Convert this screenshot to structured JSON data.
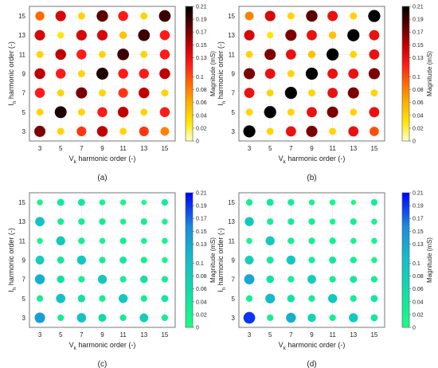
{
  "colors": {
    "warm_stops": [
      "#ffffcc",
      "#ffe600",
      "#ffb000",
      "#ff6a00",
      "#ff1a1a",
      "#c00000",
      "#5a0000",
      "#000000"
    ],
    "cool_stops": [
      "#1aff7f",
      "#12dfa6",
      "#14bfc9",
      "#1a8cde",
      "#0000ff"
    ],
    "grid": "#d9d9d9",
    "axis": "#555555"
  },
  "chart_data": [
    {
      "type": "scatter",
      "panel_label": "(a)",
      "colormap": "warm",
      "xlabel": "V",
      "xlabel_sub": "k",
      "xlabel_rest": " harmonic order (-)",
      "ylabel": "I",
      "ylabel_sub": "h",
      "ylabel_rest": " harmonic order (-)",
      "x_ticks": [
        "3",
        "5",
        "7",
        "9",
        "11",
        "13",
        "15"
      ],
      "y_ticks": [
        "3",
        "5",
        "7",
        "9",
        "11",
        "13",
        "15"
      ],
      "colorbar_label": "Magnitude (mS)",
      "colorbar_range": [
        0,
        0.21
      ],
      "colorbar_ticks": [
        "0",
        "0.02",
        "0.04",
        "0.06",
        "0.08",
        "0.1",
        "0.13",
        "0.15",
        "0.17",
        "0.19",
        "0.21"
      ],
      "grid": true,
      "points": [
        {
          "x": 3,
          "y": 15,
          "v": 0.09
        },
        {
          "x": 5,
          "y": 15,
          "v": 0.14
        },
        {
          "x": 7,
          "y": 15,
          "v": 0.04
        },
        {
          "x": 9,
          "y": 15,
          "v": 0.18
        },
        {
          "x": 11,
          "y": 15,
          "v": 0.12
        },
        {
          "x": 13,
          "y": 15,
          "v": 0.04
        },
        {
          "x": 15,
          "y": 15,
          "v": 0.19
        },
        {
          "x": 3,
          "y": 13,
          "v": 0.14
        },
        {
          "x": 5,
          "y": 13,
          "v": 0.03
        },
        {
          "x": 7,
          "y": 13,
          "v": 0.14
        },
        {
          "x": 9,
          "y": 13,
          "v": 0.14
        },
        {
          "x": 11,
          "y": 13,
          "v": 0.05
        },
        {
          "x": 13,
          "y": 13,
          "v": 0.19
        },
        {
          "x": 15,
          "y": 13,
          "v": 0.12
        },
        {
          "x": 3,
          "y": 11,
          "v": 0.04
        },
        {
          "x": 5,
          "y": 11,
          "v": 0.15
        },
        {
          "x": 7,
          "y": 11,
          "v": 0.12
        },
        {
          "x": 9,
          "y": 11,
          "v": 0.04
        },
        {
          "x": 11,
          "y": 11,
          "v": 0.19
        },
        {
          "x": 13,
          "y": 11,
          "v": 0.04
        },
        {
          "x": 15,
          "y": 11,
          "v": 0.12
        },
        {
          "x": 3,
          "y": 9,
          "v": 0.15
        },
        {
          "x": 5,
          "y": 9,
          "v": 0.12
        },
        {
          "x": 7,
          "y": 9,
          "v": 0.04
        },
        {
          "x": 9,
          "y": 9,
          "v": 0.2
        },
        {
          "x": 11,
          "y": 9,
          "v": 0.12
        },
        {
          "x": 13,
          "y": 9,
          "v": 0.12
        },
        {
          "x": 15,
          "y": 9,
          "v": 0.15
        },
        {
          "x": 3,
          "y": 7,
          "v": 0.12
        },
        {
          "x": 5,
          "y": 7,
          "v": 0.04
        },
        {
          "x": 7,
          "y": 7,
          "v": 0.17
        },
        {
          "x": 9,
          "y": 7,
          "v": 0.04
        },
        {
          "x": 11,
          "y": 7,
          "v": 0.11
        },
        {
          "x": 13,
          "y": 7,
          "v": 0.15
        },
        {
          "x": 15,
          "y": 7,
          "v": 0.04
        },
        {
          "x": 3,
          "y": 5,
          "v": 0.04
        },
        {
          "x": 5,
          "y": 5,
          "v": 0.2
        },
        {
          "x": 7,
          "y": 5,
          "v": 0.04
        },
        {
          "x": 9,
          "y": 5,
          "v": 0.12
        },
        {
          "x": 11,
          "y": 5,
          "v": 0.15
        },
        {
          "x": 13,
          "y": 5,
          "v": 0.04
        },
        {
          "x": 15,
          "y": 5,
          "v": 0.12
        },
        {
          "x": 3,
          "y": 3,
          "v": 0.17
        },
        {
          "x": 5,
          "y": 3,
          "v": 0.04
        },
        {
          "x": 7,
          "y": 3,
          "v": 0.11
        },
        {
          "x": 9,
          "y": 3,
          "v": 0.15
        },
        {
          "x": 11,
          "y": 3,
          "v": 0.04
        },
        {
          "x": 13,
          "y": 3,
          "v": 0.11
        },
        {
          "x": 15,
          "y": 3,
          "v": 0.08
        }
      ]
    },
    {
      "type": "scatter",
      "panel_label": "(b)",
      "colormap": "warm",
      "xlabel": "V",
      "xlabel_sub": "k",
      "xlabel_rest": " harmonic order (-)",
      "ylabel": "I",
      "ylabel_sub": "h",
      "ylabel_rest": " harmonic order (-)",
      "x_ticks": [
        "3",
        "5",
        "7",
        "9",
        "11",
        "13",
        "15"
      ],
      "y_ticks": [
        "3",
        "5",
        "7",
        "9",
        "11",
        "13",
        "15"
      ],
      "colorbar_label": "Magnitude (mS)",
      "colorbar_range": [
        0,
        0.21
      ],
      "colorbar_ticks": [
        "0",
        "0.02",
        "0.04",
        "0.06",
        "0.08",
        "0.1",
        "0.13",
        "0.15",
        "0.17",
        "0.19",
        "0.21"
      ],
      "grid": true,
      "points": [
        {
          "x": 3,
          "y": 15,
          "v": 0.08
        },
        {
          "x": 5,
          "y": 15,
          "v": 0.14
        },
        {
          "x": 7,
          "y": 15,
          "v": 0.04
        },
        {
          "x": 9,
          "y": 15,
          "v": 0.18
        },
        {
          "x": 11,
          "y": 15,
          "v": 0.13
        },
        {
          "x": 13,
          "y": 15,
          "v": 0.04
        },
        {
          "x": 15,
          "y": 15,
          "v": 0.21
        },
        {
          "x": 3,
          "y": 13,
          "v": 0.14
        },
        {
          "x": 5,
          "y": 13,
          "v": 0.03
        },
        {
          "x": 7,
          "y": 13,
          "v": 0.17
        },
        {
          "x": 9,
          "y": 13,
          "v": 0.13
        },
        {
          "x": 11,
          "y": 13,
          "v": 0.05
        },
        {
          "x": 13,
          "y": 13,
          "v": 0.21
        },
        {
          "x": 15,
          "y": 13,
          "v": 0.13
        },
        {
          "x": 3,
          "y": 11,
          "v": 0.04
        },
        {
          "x": 5,
          "y": 11,
          "v": 0.17
        },
        {
          "x": 7,
          "y": 11,
          "v": 0.13
        },
        {
          "x": 9,
          "y": 11,
          "v": 0.05
        },
        {
          "x": 11,
          "y": 11,
          "v": 0.21
        },
        {
          "x": 13,
          "y": 11,
          "v": 0.04
        },
        {
          "x": 15,
          "y": 11,
          "v": 0.13
        },
        {
          "x": 3,
          "y": 9,
          "v": 0.17
        },
        {
          "x": 5,
          "y": 9,
          "v": 0.13
        },
        {
          "x": 7,
          "y": 9,
          "v": 0.04
        },
        {
          "x": 9,
          "y": 9,
          "v": 0.21
        },
        {
          "x": 11,
          "y": 9,
          "v": 0.13
        },
        {
          "x": 13,
          "y": 9,
          "v": 0.13
        },
        {
          "x": 15,
          "y": 9,
          "v": 0.17
        },
        {
          "x": 3,
          "y": 7,
          "v": 0.13
        },
        {
          "x": 5,
          "y": 7,
          "v": 0.04
        },
        {
          "x": 7,
          "y": 7,
          "v": 0.21
        },
        {
          "x": 9,
          "y": 7,
          "v": 0.04
        },
        {
          "x": 11,
          "y": 7,
          "v": 0.13
        },
        {
          "x": 13,
          "y": 7,
          "v": 0.17
        },
        {
          "x": 15,
          "y": 7,
          "v": 0.04
        },
        {
          "x": 3,
          "y": 5,
          "v": 0.04
        },
        {
          "x": 5,
          "y": 5,
          "v": 0.21
        },
        {
          "x": 7,
          "y": 5,
          "v": 0.04
        },
        {
          "x": 9,
          "y": 5,
          "v": 0.13
        },
        {
          "x": 11,
          "y": 5,
          "v": 0.17
        },
        {
          "x": 13,
          "y": 5,
          "v": 0.04
        },
        {
          "x": 15,
          "y": 5,
          "v": 0.13
        },
        {
          "x": 3,
          "y": 3,
          "v": 0.21
        },
        {
          "x": 5,
          "y": 3,
          "v": 0.04
        },
        {
          "x": 7,
          "y": 3,
          "v": 0.13
        },
        {
          "x": 9,
          "y": 3,
          "v": 0.17
        },
        {
          "x": 11,
          "y": 3,
          "v": 0.04
        },
        {
          "x": 13,
          "y": 3,
          "v": 0.13
        },
        {
          "x": 15,
          "y": 3,
          "v": 0.1
        }
      ]
    },
    {
      "type": "scatter",
      "panel_label": "(c)",
      "colormap": "cool",
      "xlabel": "V",
      "xlabel_sub": "k",
      "xlabel_rest": " harmonic order (-)",
      "ylabel": "I",
      "ylabel_sub": "h",
      "ylabel_rest": " harmonic order (-)",
      "x_ticks": [
        "3",
        "5",
        "7",
        "9",
        "11",
        "13",
        "15"
      ],
      "y_ticks": [
        "3",
        "5",
        "7",
        "9",
        "11",
        "13",
        "15"
      ],
      "colorbar_label": "Magnitude (mS)",
      "colorbar_range": [
        0,
        0.21
      ],
      "colorbar_ticks": [
        "0",
        "0.02",
        "0.04",
        "0.06",
        "0.08",
        "0.1",
        "0.13",
        "0.15",
        "0.17",
        "0.19",
        "0.21"
      ],
      "grid": true,
      "points": [
        {
          "x": 3,
          "y": 15,
          "v": 0.02
        },
        {
          "x": 5,
          "y": 15,
          "v": 0.04
        },
        {
          "x": 7,
          "y": 15,
          "v": 0.04
        },
        {
          "x": 9,
          "y": 15,
          "v": 0.02
        },
        {
          "x": 11,
          "y": 15,
          "v": 0.02
        },
        {
          "x": 13,
          "y": 15,
          "v": 0.01
        },
        {
          "x": 15,
          "y": 15,
          "v": 0.03
        },
        {
          "x": 3,
          "y": 13,
          "v": 0.1
        },
        {
          "x": 5,
          "y": 13,
          "v": 0.03
        },
        {
          "x": 7,
          "y": 13,
          "v": 0.03
        },
        {
          "x": 9,
          "y": 13,
          "v": 0.03
        },
        {
          "x": 11,
          "y": 13,
          "v": 0.02
        },
        {
          "x": 13,
          "y": 13,
          "v": 0.03
        },
        {
          "x": 15,
          "y": 13,
          "v": 0.02
        },
        {
          "x": 3,
          "y": 11,
          "v": 0.02
        },
        {
          "x": 5,
          "y": 11,
          "v": 0.09
        },
        {
          "x": 7,
          "y": 11,
          "v": 0.03
        },
        {
          "x": 9,
          "y": 11,
          "v": 0.02
        },
        {
          "x": 11,
          "y": 11,
          "v": 0.03
        },
        {
          "x": 13,
          "y": 11,
          "v": 0.02
        },
        {
          "x": 15,
          "y": 11,
          "v": 0.02
        },
        {
          "x": 3,
          "y": 9,
          "v": 0.08
        },
        {
          "x": 5,
          "y": 9,
          "v": 0.04
        },
        {
          "x": 7,
          "y": 9,
          "v": 0.09
        },
        {
          "x": 9,
          "y": 9,
          "v": 0.03
        },
        {
          "x": 11,
          "y": 9,
          "v": 0.04
        },
        {
          "x": 13,
          "y": 9,
          "v": 0.03
        },
        {
          "x": 15,
          "y": 9,
          "v": 0.02
        },
        {
          "x": 3,
          "y": 7,
          "v": 0.12
        },
        {
          "x": 5,
          "y": 7,
          "v": 0.05
        },
        {
          "x": 7,
          "y": 7,
          "v": 0.03
        },
        {
          "x": 9,
          "y": 7,
          "v": 0.09
        },
        {
          "x": 11,
          "y": 7,
          "v": 0.03
        },
        {
          "x": 13,
          "y": 7,
          "v": 0.05
        },
        {
          "x": 15,
          "y": 7,
          "v": 0.03
        },
        {
          "x": 3,
          "y": 5,
          "v": 0.03
        },
        {
          "x": 5,
          "y": 5,
          "v": 0.1
        },
        {
          "x": 7,
          "y": 5,
          "v": 0.05
        },
        {
          "x": 9,
          "y": 5,
          "v": 0.03
        },
        {
          "x": 11,
          "y": 5,
          "v": 0.09
        },
        {
          "x": 13,
          "y": 5,
          "v": 0.03
        },
        {
          "x": 15,
          "y": 5,
          "v": 0.04
        },
        {
          "x": 3,
          "y": 3,
          "v": 0.14
        },
        {
          "x": 5,
          "y": 3,
          "v": 0.03
        },
        {
          "x": 7,
          "y": 3,
          "v": 0.1
        },
        {
          "x": 9,
          "y": 3,
          "v": 0.06
        },
        {
          "x": 11,
          "y": 3,
          "v": 0.03
        },
        {
          "x": 13,
          "y": 3,
          "v": 0.08
        },
        {
          "x": 15,
          "y": 3,
          "v": 0.03
        }
      ]
    },
    {
      "type": "scatter",
      "panel_label": "(d)",
      "colormap": "cool",
      "xlabel": "V",
      "xlabel_sub": "k",
      "xlabel_rest": " harmonic order (-)",
      "ylabel": "I",
      "ylabel_sub": "h",
      "ylabel_rest": " harmonic order (-)",
      "x_ticks": [
        "3",
        "5",
        "7",
        "9",
        "11",
        "13",
        "15"
      ],
      "y_ticks": [
        "3",
        "5",
        "7",
        "9",
        "11",
        "13",
        "15"
      ],
      "colorbar_label": "Magnitude (mS)",
      "colorbar_range": [
        0,
        0.21
      ],
      "colorbar_ticks": [
        "0",
        "0.02",
        "0.04",
        "0.06",
        "0.08",
        "0.1",
        "0.13",
        "0.15",
        "0.17",
        "0.19",
        "0.21"
      ],
      "grid": true,
      "points": [
        {
          "x": 3,
          "y": 15,
          "v": 0.03
        },
        {
          "x": 5,
          "y": 15,
          "v": 0.04
        },
        {
          "x": 7,
          "y": 15,
          "v": 0.03
        },
        {
          "x": 9,
          "y": 15,
          "v": 0.02
        },
        {
          "x": 11,
          "y": 15,
          "v": 0.02
        },
        {
          "x": 13,
          "y": 15,
          "v": 0.01
        },
        {
          "x": 15,
          "y": 15,
          "v": 0.03
        },
        {
          "x": 3,
          "y": 13,
          "v": 0.09
        },
        {
          "x": 5,
          "y": 13,
          "v": 0.03
        },
        {
          "x": 7,
          "y": 13,
          "v": 0.03
        },
        {
          "x": 9,
          "y": 13,
          "v": 0.03
        },
        {
          "x": 11,
          "y": 13,
          "v": 0.02
        },
        {
          "x": 13,
          "y": 13,
          "v": 0.03
        },
        {
          "x": 15,
          "y": 13,
          "v": 0.02
        },
        {
          "x": 3,
          "y": 11,
          "v": 0.02
        },
        {
          "x": 5,
          "y": 11,
          "v": 0.09
        },
        {
          "x": 7,
          "y": 11,
          "v": 0.03
        },
        {
          "x": 9,
          "y": 11,
          "v": 0.03
        },
        {
          "x": 11,
          "y": 11,
          "v": 0.03
        },
        {
          "x": 13,
          "y": 11,
          "v": 0.02
        },
        {
          "x": 15,
          "y": 11,
          "v": 0.02
        },
        {
          "x": 3,
          "y": 9,
          "v": 0.08
        },
        {
          "x": 5,
          "y": 9,
          "v": 0.04
        },
        {
          "x": 7,
          "y": 9,
          "v": 0.09
        },
        {
          "x": 9,
          "y": 9,
          "v": 0.03
        },
        {
          "x": 11,
          "y": 9,
          "v": 0.04
        },
        {
          "x": 13,
          "y": 9,
          "v": 0.03
        },
        {
          "x": 15,
          "y": 9,
          "v": 0.02
        },
        {
          "x": 3,
          "y": 7,
          "v": 0.13
        },
        {
          "x": 5,
          "y": 7,
          "v": 0.05
        },
        {
          "x": 7,
          "y": 7,
          "v": 0.03
        },
        {
          "x": 9,
          "y": 7,
          "v": 0.08
        },
        {
          "x": 11,
          "y": 7,
          "v": 0.03
        },
        {
          "x": 13,
          "y": 7,
          "v": 0.04
        },
        {
          "x": 15,
          "y": 7,
          "v": 0.03
        },
        {
          "x": 3,
          "y": 5,
          "v": 0.03
        },
        {
          "x": 5,
          "y": 5,
          "v": 0.11
        },
        {
          "x": 7,
          "y": 5,
          "v": 0.05
        },
        {
          "x": 9,
          "y": 5,
          "v": 0.03
        },
        {
          "x": 11,
          "y": 5,
          "v": 0.09
        },
        {
          "x": 13,
          "y": 5,
          "v": 0.03
        },
        {
          "x": 15,
          "y": 5,
          "v": 0.04
        },
        {
          "x": 3,
          "y": 3,
          "v": 0.19
        },
        {
          "x": 5,
          "y": 3,
          "v": 0.03
        },
        {
          "x": 7,
          "y": 3,
          "v": 0.12
        },
        {
          "x": 9,
          "y": 3,
          "v": 0.07
        },
        {
          "x": 11,
          "y": 3,
          "v": 0.03
        },
        {
          "x": 13,
          "y": 3,
          "v": 0.09
        },
        {
          "x": 15,
          "y": 3,
          "v": 0.04
        }
      ]
    }
  ]
}
